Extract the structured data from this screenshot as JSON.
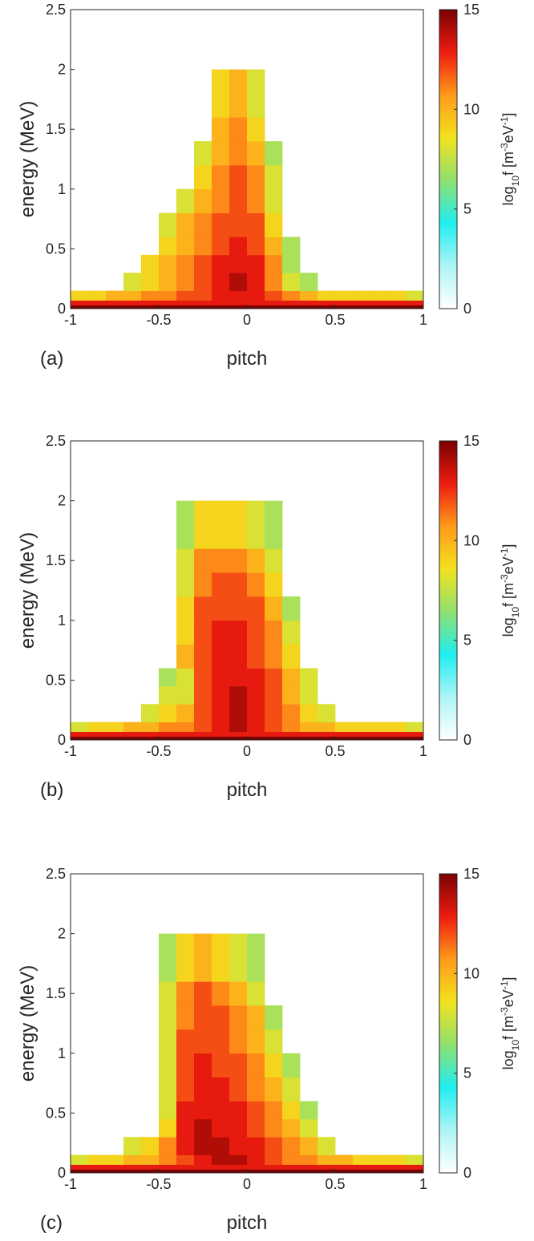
{
  "chart_data": [
    {
      "type": "heatmap",
      "panel_label": "(a)",
      "xlabel": "pitch",
      "ylabel": "energy (MeV)",
      "xlim": [
        -1,
        1
      ],
      "ylim": [
        0,
        2.5
      ],
      "xticks": [
        -1,
        -0.5,
        0,
        0.5,
        1
      ],
      "yticks": [
        0,
        0.5,
        1,
        1.5,
        2,
        2.5
      ],
      "x_edges": [
        -1,
        -0.9,
        -0.8,
        -0.7,
        -0.6,
        -0.5,
        -0.4,
        -0.3,
        -0.2,
        -0.1,
        0,
        0.1,
        0.2,
        0.3,
        0.4,
        0.5,
        0.6,
        0.7,
        0.8,
        0.9,
        1
      ],
      "y_edges": [
        0,
        0.03,
        0.07,
        0.15,
        0.3,
        0.45,
        0.6,
        0.8,
        1,
        1.2,
        1.4,
        1.6,
        2
      ],
      "z": [
        [
          15,
          15,
          15,
          15,
          15,
          15,
          15,
          15,
          15,
          15,
          15,
          15,
          15,
          15,
          15,
          15,
          15,
          15,
          15,
          15
        ],
        [
          13,
          13,
          13,
          13,
          13,
          13,
          13,
          13,
          13,
          13,
          13,
          13,
          13,
          13,
          13,
          13,
          13,
          13,
          13,
          13
        ],
        [
          9,
          9,
          10,
          10,
          11,
          11,
          12,
          12,
          13,
          13,
          13,
          12,
          11,
          10,
          9,
          9,
          9,
          9,
          9,
          8
        ],
        [
          null,
          null,
          null,
          8,
          9,
          10,
          11,
          12,
          13,
          14,
          13,
          11,
          8,
          7,
          null,
          null,
          null,
          null,
          null,
          null
        ],
        [
          null,
          null,
          null,
          null,
          9,
          10,
          11,
          12,
          13,
          13,
          13,
          11,
          7,
          null,
          null,
          null,
          null,
          null,
          null,
          null
        ],
        [
          null,
          null,
          null,
          null,
          null,
          9,
          10,
          11,
          12,
          13,
          12,
          10,
          7,
          null,
          null,
          null,
          null,
          null,
          null,
          null
        ],
        [
          null,
          null,
          null,
          null,
          null,
          8,
          10,
          11,
          12,
          12,
          12,
          9,
          null,
          null,
          null,
          null,
          null,
          null,
          null,
          null
        ],
        [
          null,
          null,
          null,
          null,
          null,
          null,
          8,
          10,
          11,
          12,
          11,
          8,
          null,
          null,
          null,
          null,
          null,
          null,
          null,
          null
        ],
        [
          null,
          null,
          null,
          null,
          null,
          null,
          null,
          9,
          11,
          12,
          11,
          8,
          null,
          null,
          null,
          null,
          null,
          null,
          null,
          null
        ],
        [
          null,
          null,
          null,
          null,
          null,
          null,
          null,
          8,
          10,
          11,
          10,
          7,
          null,
          null,
          null,
          null,
          null,
          null,
          null,
          null
        ],
        [
          null,
          null,
          null,
          null,
          null,
          null,
          null,
          null,
          10,
          11,
          9,
          null,
          null,
          null,
          null,
          null,
          null,
          null,
          null,
          null
        ],
        [
          null,
          null,
          null,
          null,
          null,
          null,
          null,
          null,
          9,
          10,
          8,
          null,
          null,
          null,
          null,
          null,
          null,
          null,
          null,
          null
        ]
      ],
      "zlim": [
        0,
        15
      ],
      "zticks": [
        0,
        5,
        10,
        15
      ],
      "colorbar_label": [
        "log",
        "10",
        "f [m",
        "-3",
        "eV",
        "-1",
        "]"
      ],
      "colormap": [
        "#ffffff",
        "#aef4f4",
        "#20eef0",
        "#90e070",
        "#f2e21e",
        "#ff9a1a",
        "#ee1c10",
        "#7a0000"
      ]
    },
    {
      "type": "heatmap",
      "panel_label": "(b)",
      "xlabel": "pitch",
      "ylabel": "energy (MeV)",
      "xlim": [
        -1,
        1
      ],
      "ylim": [
        0,
        2.5
      ],
      "xticks": [
        -1,
        -0.5,
        0,
        0.5,
        1
      ],
      "yticks": [
        0,
        0.5,
        1,
        1.5,
        2,
        2.5
      ],
      "x_edges": [
        -1,
        -0.9,
        -0.8,
        -0.7,
        -0.6,
        -0.5,
        -0.4,
        -0.3,
        -0.2,
        -0.1,
        0,
        0.1,
        0.2,
        0.3,
        0.4,
        0.5,
        0.6,
        0.7,
        0.8,
        0.9,
        1
      ],
      "y_edges": [
        0,
        0.03,
        0.07,
        0.15,
        0.3,
        0.45,
        0.6,
        0.8,
        1,
        1.2,
        1.4,
        1.6,
        2
      ],
      "z": [
        [
          15,
          15,
          15,
          15,
          15,
          15,
          15,
          15,
          15,
          15,
          15,
          15,
          15,
          15,
          15,
          15,
          15,
          15,
          15,
          15
        ],
        [
          13,
          13,
          13,
          13,
          13,
          13,
          13,
          13,
          13,
          13,
          13,
          13,
          13,
          13,
          13,
          13,
          13,
          13,
          13,
          13
        ],
        [
          8,
          9,
          9,
          10,
          10,
          11,
          11,
          12,
          13,
          14,
          13,
          12,
          11,
          10,
          10,
          9,
          9,
          9,
          9,
          8
        ],
        [
          null,
          null,
          null,
          null,
          8,
          9,
          10,
          12,
          13,
          14,
          13,
          12,
          11,
          9,
          8,
          null,
          null,
          null,
          null,
          null
        ],
        [
          null,
          null,
          null,
          null,
          null,
          8,
          8,
          12,
          13,
          14,
          13,
          12,
          10,
          8,
          null,
          null,
          null,
          null,
          null,
          null
        ],
        [
          null,
          null,
          null,
          null,
          null,
          7,
          8,
          12,
          13,
          13,
          13,
          12,
          10,
          8,
          null,
          null,
          null,
          null,
          null,
          null
        ],
        [
          null,
          null,
          null,
          null,
          null,
          null,
          10,
          12,
          13,
          13,
          12,
          11,
          9,
          null,
          null,
          null,
          null,
          null,
          null,
          null
        ],
        [
          null,
          null,
          null,
          null,
          null,
          null,
          9,
          12,
          13,
          13,
          12,
          11,
          8,
          null,
          null,
          null,
          null,
          null,
          null,
          null
        ],
        [
          null,
          null,
          null,
          null,
          null,
          null,
          9,
          12,
          12,
          12,
          12,
          10,
          7,
          null,
          null,
          null,
          null,
          null,
          null,
          null
        ],
        [
          null,
          null,
          null,
          null,
          null,
          null,
          8,
          11,
          12,
          12,
          11,
          9,
          null,
          null,
          null,
          null,
          null,
          null,
          null,
          null
        ],
        [
          null,
          null,
          null,
          null,
          null,
          null,
          8,
          11,
          11,
          11,
          10,
          8,
          null,
          null,
          null,
          null,
          null,
          null,
          null,
          null
        ],
        [
          null,
          null,
          null,
          null,
          null,
          null,
          7,
          9,
          9,
          9,
          8,
          7,
          null,
          null,
          null,
          null,
          null,
          null,
          null,
          null
        ]
      ],
      "zlim": [
        0,
        15
      ],
      "zticks": [
        0,
        5,
        10,
        15
      ],
      "colorbar_label": [
        "log",
        "10",
        "f [m",
        "-3",
        "eV",
        "-1",
        "]"
      ],
      "colormap": [
        "#ffffff",
        "#aef4f4",
        "#20eef0",
        "#90e070",
        "#f2e21e",
        "#ff9a1a",
        "#ee1c10",
        "#7a0000"
      ]
    },
    {
      "type": "heatmap",
      "panel_label": "(c)",
      "xlabel": "pitch",
      "ylabel": "energy (MeV)",
      "xlim": [
        -1,
        1
      ],
      "ylim": [
        0,
        2.5
      ],
      "xticks": [
        -1,
        -0.5,
        0,
        0.5,
        1
      ],
      "yticks": [
        0,
        0.5,
        1,
        1.5,
        2,
        2.5
      ],
      "x_edges": [
        -1,
        -0.9,
        -0.8,
        -0.7,
        -0.6,
        -0.5,
        -0.4,
        -0.3,
        -0.2,
        -0.1,
        0,
        0.1,
        0.2,
        0.3,
        0.4,
        0.5,
        0.6,
        0.7,
        0.8,
        0.9,
        1
      ],
      "y_edges": [
        0,
        0.03,
        0.07,
        0.15,
        0.3,
        0.45,
        0.6,
        0.8,
        1,
        1.2,
        1.4,
        1.6,
        2
      ],
      "z": [
        [
          15,
          15,
          15,
          15,
          15,
          15,
          15,
          15,
          15,
          15,
          15,
          15,
          15,
          15,
          15,
          15,
          15,
          15,
          15,
          15
        ],
        [
          13,
          13,
          13,
          13,
          13,
          13,
          13,
          13,
          13,
          13,
          13,
          13,
          13,
          13,
          13,
          13,
          13,
          13,
          13,
          13
        ],
        [
          8,
          9,
          9,
          10,
          10,
          11,
          12,
          13,
          14,
          14,
          13,
          12,
          11,
          11,
          10,
          10,
          9,
          9,
          9,
          8
        ],
        [
          null,
          null,
          null,
          8,
          9,
          11,
          13,
          14,
          14,
          13,
          13,
          12,
          11,
          10,
          8,
          null,
          null,
          null,
          null,
          null
        ],
        [
          null,
          null,
          null,
          null,
          null,
          9,
          13,
          14,
          13,
          13,
          12,
          11,
          10,
          8,
          null,
          null,
          null,
          null,
          null,
          null
        ],
        [
          null,
          null,
          null,
          null,
          null,
          8,
          13,
          13,
          13,
          13,
          12,
          11,
          9,
          7,
          null,
          null,
          null,
          null,
          null,
          null
        ],
        [
          null,
          null,
          null,
          null,
          null,
          8,
          12,
          13,
          13,
          12,
          11,
          10,
          8,
          null,
          null,
          null,
          null,
          null,
          null,
          null
        ],
        [
          null,
          null,
          null,
          null,
          null,
          8,
          12,
          13,
          12,
          12,
          11,
          9,
          7,
          null,
          null,
          null,
          null,
          null,
          null,
          null
        ],
        [
          null,
          null,
          null,
          null,
          null,
          8,
          12,
          12,
          12,
          11,
          10,
          8,
          null,
          null,
          null,
          null,
          null,
          null,
          null,
          null
        ],
        [
          null,
          null,
          null,
          null,
          null,
          8,
          11,
          12,
          12,
          11,
          10,
          7,
          null,
          null,
          null,
          null,
          null,
          null,
          null,
          null
        ],
        [
          null,
          null,
          null,
          null,
          null,
          8,
          11,
          12,
          11,
          10,
          8,
          null,
          null,
          null,
          null,
          null,
          null,
          null,
          null,
          null
        ],
        [
          null,
          null,
          null,
          null,
          null,
          7,
          9,
          10,
          9,
          8,
          7,
          null,
          null,
          null,
          null,
          null,
          null,
          null,
          null,
          null
        ]
      ],
      "zlim": [
        0,
        15
      ],
      "zticks": [
        0,
        5,
        10,
        15
      ],
      "colorbar_label": [
        "log",
        "10",
        "f [m",
        "-3",
        "eV",
        "-1",
        "]"
      ],
      "colormap": [
        "#ffffff",
        "#aef4f4",
        "#20eef0",
        "#90e070",
        "#f2e21e",
        "#ff9a1a",
        "#ee1c10",
        "#7a0000"
      ]
    }
  ]
}
